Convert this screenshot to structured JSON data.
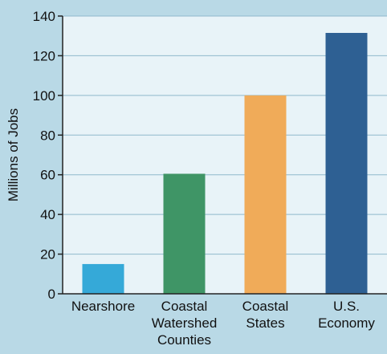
{
  "chart_data": {
    "type": "bar",
    "categories": [
      [
        "Nearshore"
      ],
      [
        "Coastal",
        "Watershed",
        "Counties"
      ],
      [
        "Coastal",
        "States"
      ],
      [
        "U.S.",
        "Economy"
      ]
    ],
    "values": [
      15,
      60.5,
      100,
      131.5
    ],
    "ylabel": "Millions of Jobs",
    "ylim": [
      0,
      140
    ],
    "yticks": [
      0,
      20,
      40,
      60,
      80,
      100,
      120,
      140
    ],
    "grid": true,
    "colors": {
      "background": "#b9d9e6",
      "plot_area": "#e8f3f8",
      "gridline": "#8fb9cc",
      "axis": "#222222",
      "bars": [
        "#35a9d8",
        "#3f9566",
        "#f0ab59",
        "#2e6093"
      ]
    }
  }
}
